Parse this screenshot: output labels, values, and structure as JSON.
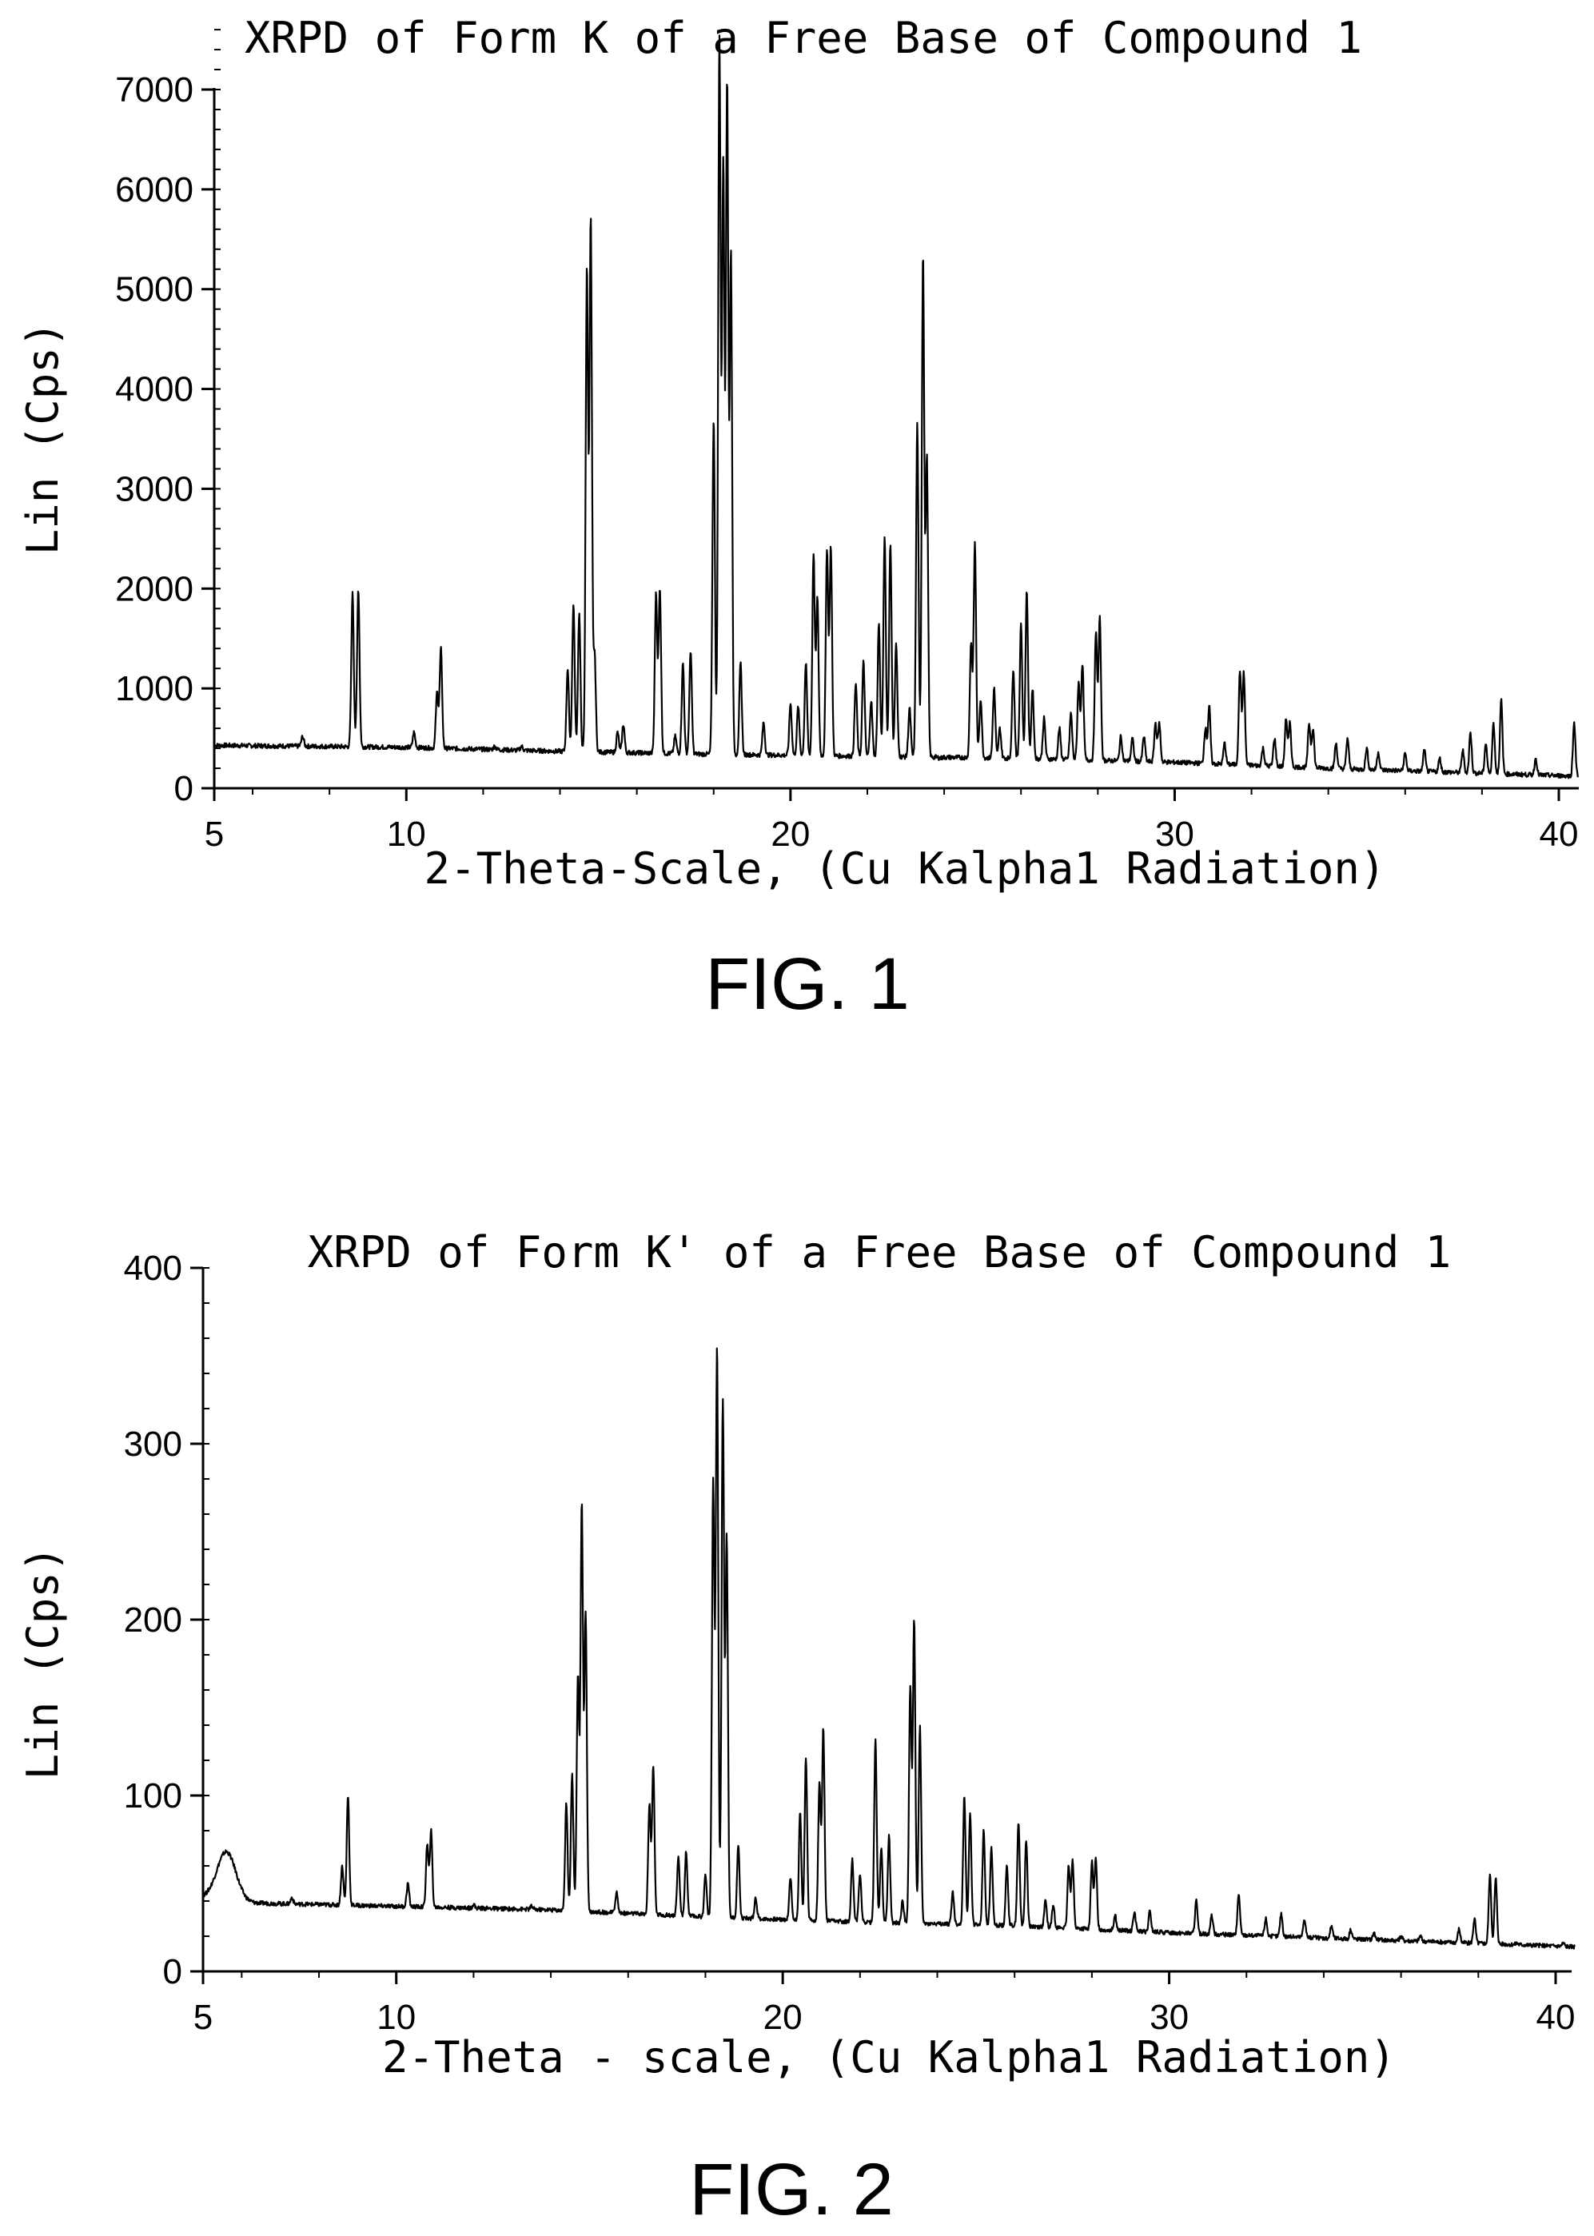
{
  "chart_data": [
    {
      "type": "line",
      "title": "XRPD of Form K of a Free Base of Compound 1",
      "xlabel": "2-Theta-Scale, (Cu Kalpha1 Radiation)",
      "ylabel": "Lin (Cps)",
      "figure_label": "FIG. 1",
      "xlim": [
        5,
        40.5
      ],
      "ylim": [
        0,
        7700
      ],
      "xticks": [
        5,
        10,
        20,
        30,
        40
      ],
      "xtick_labels": [
        "5",
        "10",
        "20",
        "30",
        "40"
      ],
      "yticks": [
        0,
        1000,
        2000,
        3000,
        4000,
        5000,
        6000,
        7000
      ],
      "ytick_labels": [
        "0",
        "1000",
        "2000",
        "3000",
        "4000",
        "5000",
        "6000",
        "7000"
      ],
      "grid": false,
      "baseline": [
        [
          5,
          430
        ],
        [
          10,
          410
        ],
        [
          14,
          370
        ],
        [
          18,
          340
        ],
        [
          22,
          320
        ],
        [
          26,
          300
        ],
        [
          30,
          260
        ],
        [
          34,
          200
        ],
        [
          38,
          150
        ],
        [
          40.5,
          120
        ]
      ],
      "peaks": [
        [
          7.3,
          520
        ],
        [
          8.6,
          1950
        ],
        [
          8.75,
          2000
        ],
        [
          10.2,
          560
        ],
        [
          10.8,
          960
        ],
        [
          10.9,
          1400
        ],
        [
          12.3,
          420
        ],
        [
          13.0,
          420
        ],
        [
          14.2,
          1200
        ],
        [
          14.35,
          1850
        ],
        [
          14.5,
          1750
        ],
        [
          14.7,
          5200
        ],
        [
          14.8,
          5700
        ],
        [
          14.9,
          1350
        ],
        [
          15.5,
          560
        ],
        [
          15.65,
          640
        ],
        [
          16.5,
          1950
        ],
        [
          16.6,
          2000
        ],
        [
          17.0,
          520
        ],
        [
          17.2,
          1250
        ],
        [
          17.4,
          1380
        ],
        [
          18.0,
          3700
        ],
        [
          18.15,
          7500
        ],
        [
          18.25,
          6250
        ],
        [
          18.35,
          7050
        ],
        [
          18.45,
          5350
        ],
        [
          18.7,
          1250
        ],
        [
          19.3,
          660
        ],
        [
          20.0,
          850
        ],
        [
          20.2,
          820
        ],
        [
          20.4,
          1250
        ],
        [
          20.6,
          2350
        ],
        [
          20.7,
          1900
        ],
        [
          20.95,
          2400
        ],
        [
          21.05,
          2420
        ],
        [
          21.7,
          1050
        ],
        [
          21.9,
          1270
        ],
        [
          22.1,
          880
        ],
        [
          22.3,
          1650
        ],
        [
          22.45,
          2500
        ],
        [
          22.6,
          2450
        ],
        [
          22.75,
          1450
        ],
        [
          23.1,
          800
        ],
        [
          23.3,
          3650
        ],
        [
          23.45,
          5350
        ],
        [
          23.55,
          3300
        ],
        [
          23.9,
          300
        ],
        [
          24.7,
          1450
        ],
        [
          24.8,
          2450
        ],
        [
          24.95,
          900
        ],
        [
          25.3,
          1000
        ],
        [
          25.45,
          600
        ],
        [
          25.8,
          1200
        ],
        [
          26.0,
          1650
        ],
        [
          26.15,
          1980
        ],
        [
          26.3,
          1000
        ],
        [
          26.6,
          700
        ],
        [
          27.0,
          600
        ],
        [
          27.3,
          750
        ],
        [
          27.5,
          1050
        ],
        [
          27.6,
          1230
        ],
        [
          27.95,
          1550
        ],
        [
          28.05,
          1700
        ],
        [
          28.6,
          520
        ],
        [
          28.9,
          500
        ],
        [
          29.2,
          520
        ],
        [
          29.5,
          650
        ],
        [
          29.6,
          650
        ],
        [
          30.8,
          600
        ],
        [
          30.9,
          820
        ],
        [
          31.3,
          450
        ],
        [
          31.7,
          1180
        ],
        [
          31.8,
          1150
        ],
        [
          32.3,
          400
        ],
        [
          32.6,
          500
        ],
        [
          32.9,
          700
        ],
        [
          33.0,
          650
        ],
        [
          33.5,
          650
        ],
        [
          33.6,
          600
        ],
        [
          34.2,
          450
        ],
        [
          34.5,
          500
        ],
        [
          35.0,
          400
        ],
        [
          35.3,
          360
        ],
        [
          36.0,
          350
        ],
        [
          36.5,
          380
        ],
        [
          36.9,
          300
        ],
        [
          37.5,
          380
        ],
        [
          37.7,
          560
        ],
        [
          38.1,
          450
        ],
        [
          38.3,
          650
        ],
        [
          38.5,
          880
        ],
        [
          39.4,
          300
        ],
        [
          40.4,
          660
        ]
      ]
    },
    {
      "type": "line",
      "title": "XRPD of Form K' of a Free Base of Compound 1",
      "xlabel": "2-Theta - scale, (Cu Kalpha1 Radiation)",
      "ylabel": "Lin (Cps)",
      "figure_label": "FIG. 2",
      "xlim": [
        5,
        40.5
      ],
      "ylim": [
        0,
        400
      ],
      "xticks": [
        5,
        10,
        20,
        30,
        40
      ],
      "xtick_labels": [
        "5",
        "10",
        "20",
        "30",
        "40"
      ],
      "yticks": [
        0,
        100,
        200,
        300,
        400
      ],
      "ytick_labels": [
        "0",
        "100",
        "200",
        "300",
        "400"
      ],
      "grid": false,
      "baseline": [
        [
          5,
          42
        ],
        [
          6,
          39
        ],
        [
          10,
          37
        ],
        [
          14,
          35
        ],
        [
          18,
          31
        ],
        [
          22,
          28
        ],
        [
          26,
          26
        ],
        [
          30,
          22
        ],
        [
          34,
          19
        ],
        [
          38,
          16
        ],
        [
          40.5,
          14
        ]
      ],
      "broad_hump": {
        "center": 5.6,
        "height": 68,
        "width": 0.35
      },
      "peaks": [
        [
          7.3,
          42
        ],
        [
          8.6,
          60
        ],
        [
          8.75,
          100
        ],
        [
          10.3,
          50
        ],
        [
          10.8,
          72
        ],
        [
          10.9,
          80
        ],
        [
          12.0,
          38
        ],
        [
          13.5,
          37
        ],
        [
          14.4,
          95
        ],
        [
          14.55,
          112
        ],
        [
          14.7,
          168
        ],
        [
          14.8,
          266
        ],
        [
          14.9,
          203
        ],
        [
          15.7,
          45
        ],
        [
          16.55,
          95
        ],
        [
          16.65,
          116
        ],
        [
          17.3,
          65
        ],
        [
          17.5,
          68
        ],
        [
          18.0,
          55
        ],
        [
          18.2,
          278
        ],
        [
          18.3,
          355
        ],
        [
          18.45,
          325
        ],
        [
          18.55,
          248
        ],
        [
          18.85,
          72
        ],
        [
          19.3,
          42
        ],
        [
          20.2,
          53
        ],
        [
          20.45,
          90
        ],
        [
          20.6,
          122
        ],
        [
          20.95,
          107
        ],
        [
          21.05,
          138
        ],
        [
          21.8,
          64
        ],
        [
          22.0,
          56
        ],
        [
          22.4,
          132
        ],
        [
          22.55,
          70
        ],
        [
          22.75,
          77
        ],
        [
          23.1,
          40
        ],
        [
          23.3,
          162
        ],
        [
          23.4,
          200
        ],
        [
          23.55,
          140
        ],
        [
          24.4,
          45
        ],
        [
          24.7,
          100
        ],
        [
          24.85,
          90
        ],
        [
          25.2,
          80
        ],
        [
          25.4,
          70
        ],
        [
          25.8,
          60
        ],
        [
          26.1,
          85
        ],
        [
          26.3,
          75
        ],
        [
          26.8,
          40
        ],
        [
          27.0,
          38
        ],
        [
          27.4,
          60
        ],
        [
          27.5,
          63
        ],
        [
          28.0,
          62
        ],
        [
          28.1,
          64
        ],
        [
          28.6,
          32
        ],
        [
          29.1,
          34
        ],
        [
          29.5,
          34
        ],
        [
          30.7,
          40
        ],
        [
          31.1,
          32
        ],
        [
          31.8,
          44
        ],
        [
          32.5,
          30
        ],
        [
          32.9,
          33
        ],
        [
          33.5,
          30
        ],
        [
          34.2,
          26
        ],
        [
          34.7,
          24
        ],
        [
          35.3,
          22
        ],
        [
          36.0,
          20
        ],
        [
          36.5,
          20
        ],
        [
          37.5,
          24
        ],
        [
          37.9,
          30
        ],
        [
          38.3,
          55
        ],
        [
          38.45,
          53
        ],
        [
          39.0,
          16
        ],
        [
          40.2,
          16
        ]
      ]
    }
  ]
}
